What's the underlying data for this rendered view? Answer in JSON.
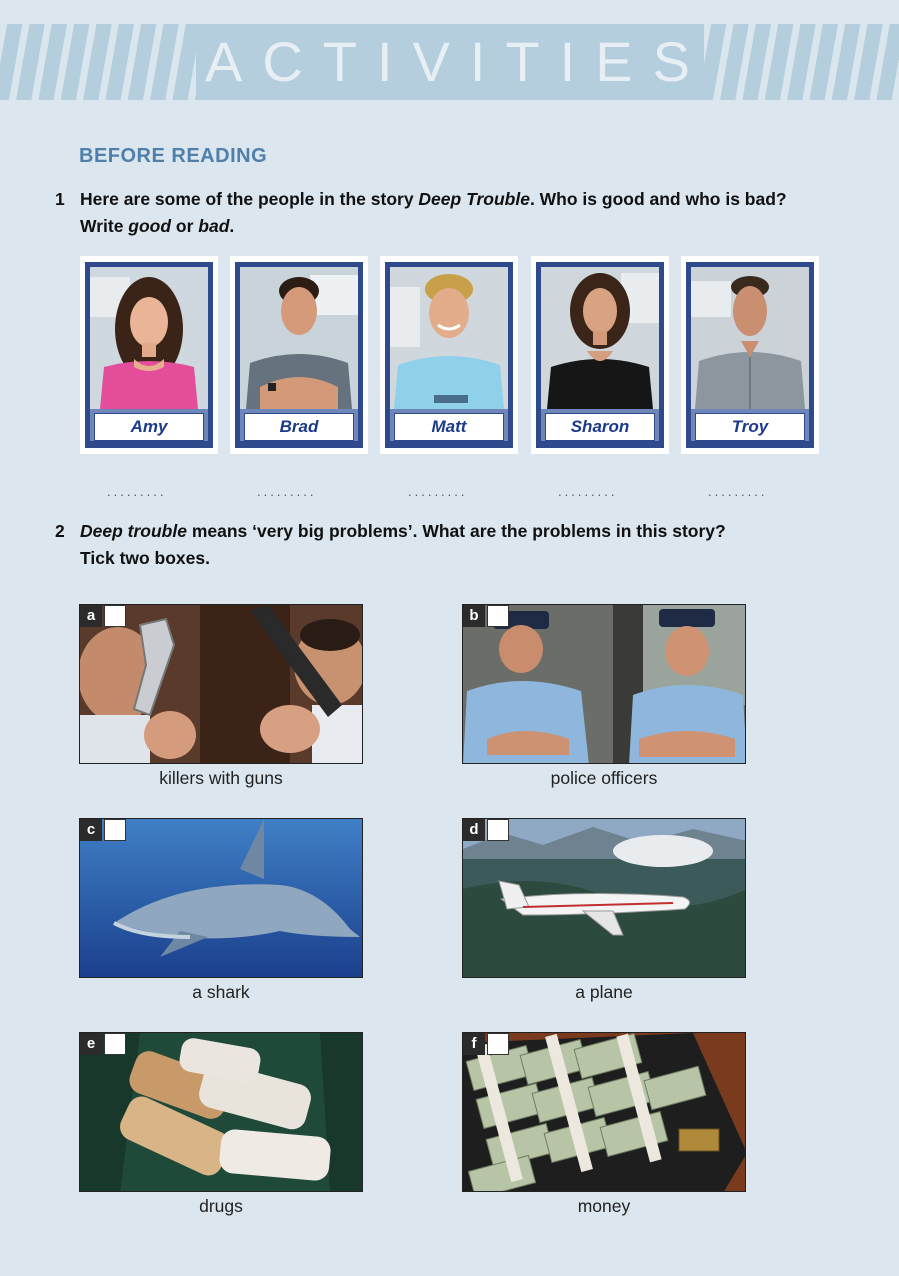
{
  "banner": {
    "title": "ACTIVITIES"
  },
  "section": {
    "heading": "BEFORE READING"
  },
  "q1": {
    "number": "1",
    "line1_a": "Here are some of the people in the story ",
    "line1_em": "Deep Trouble",
    "line1_b": ". Who is good and who is bad?",
    "line2_a": "Write ",
    "line2_em1": "good",
    "line2_b": " or ",
    "line2_em2": "bad",
    "line2_c": "."
  },
  "characters": [
    {
      "name": "Amy"
    },
    {
      "name": "Brad"
    },
    {
      "name": "Matt"
    },
    {
      "name": "Sharon"
    },
    {
      "name": "Troy"
    }
  ],
  "answer_dots": ".........",
  "q2": {
    "number": "2",
    "line1_em": "Deep trouble",
    "line1_b": " means ‘very big problems’. What are the problems in this story?",
    "line2": "Tick two boxes."
  },
  "problems": [
    {
      "letter": "a",
      "caption": "killers with guns"
    },
    {
      "letter": "b",
      "caption": "police officers"
    },
    {
      "letter": "c",
      "caption": "a shark"
    },
    {
      "letter": "d",
      "caption": "a plane"
    },
    {
      "letter": "e",
      "caption": "drugs"
    },
    {
      "letter": "f",
      "caption": "money"
    }
  ]
}
